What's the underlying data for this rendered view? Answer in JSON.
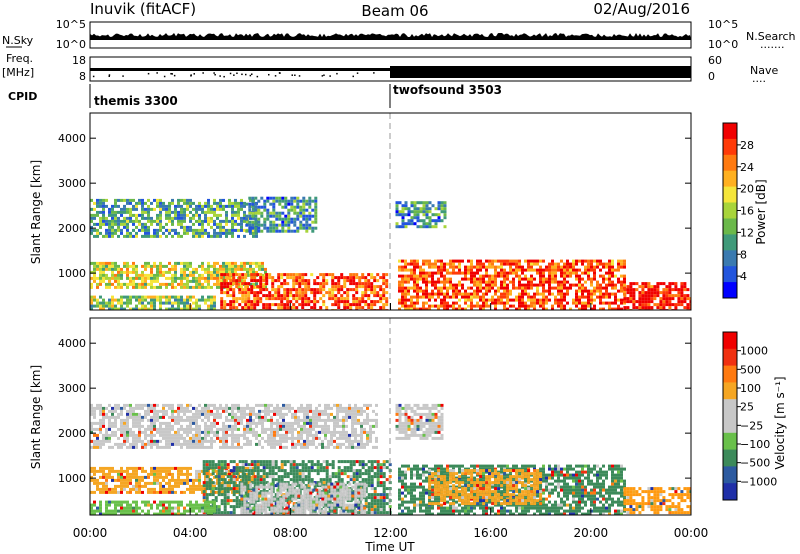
{
  "header": {
    "station": "Inuvik (fitACF)",
    "beam": "Beam 06",
    "date": "02/Aug/2016"
  },
  "nsky_panel": {
    "left_label": "N.Sky",
    "right_label": "N.Search",
    "left_ticks": [
      "10^5",
      "10^0"
    ],
    "right_ticks": [
      "10^5",
      "10^0"
    ],
    "dots": "......."
  },
  "freq_panel": {
    "left_label_line1": "Freq.",
    "left_label_line2": "[MHz]",
    "right_label": "Nave",
    "left_ticks": [
      "18",
      "8"
    ],
    "right_ticks": [
      "60",
      "0"
    ],
    "dots": "...."
  },
  "cpid": {
    "label": "CPID",
    "modes": [
      {
        "name": "themis 3300",
        "start_hour": 0
      },
      {
        "name": "twofsound 3503",
        "start_hour": 12
      }
    ]
  },
  "chart_data": [
    {
      "type": "heatmap",
      "name": "power",
      "ylabel": "Slant Range [km]",
      "xlabel": "",
      "ylim": [
        180,
        4560
      ],
      "xlim": [
        0,
        24
      ],
      "y_ticks": [
        "1000",
        "2000",
        "3000",
        "4000"
      ],
      "colorbar": {
        "label": "Power [dB]",
        "ticks": [
          "4",
          "8",
          "12",
          "16",
          "20",
          "24",
          "28"
        ],
        "colors": [
          "#0000ff",
          "#2255dd",
          "#3a7ab0",
          "#3f9a7a",
          "#6ab84a",
          "#a8d43a",
          "#f5e53a",
          "#ffb020",
          "#ff7a10",
          "#ff3a08",
          "#f00000"
        ]
      },
      "echo_regions": [
        {
          "t0": 0.0,
          "t1": 6.6,
          "r0": 1800,
          "r1": 2650,
          "level": 0.35
        },
        {
          "t0": 6.2,
          "t1": 9.0,
          "r0": 1900,
          "r1": 2700,
          "level": 0.3
        },
        {
          "t0": 12.2,
          "t1": 14.2,
          "r0": 2000,
          "r1": 2600,
          "level": 0.3
        },
        {
          "t0": 0.0,
          "t1": 7.0,
          "r0": 700,
          "r1": 1250,
          "level": 0.55
        },
        {
          "t0": 5.2,
          "t1": 11.8,
          "r0": 180,
          "r1": 1000,
          "level": 0.85
        },
        {
          "t0": 12.3,
          "t1": 21.3,
          "r0": 180,
          "r1": 1300,
          "level": 0.85
        },
        {
          "t0": 21.3,
          "t1": 24.0,
          "r0": 180,
          "r1": 800,
          "level": 0.95
        },
        {
          "t0": 0.0,
          "t1": 5.0,
          "r0": 180,
          "r1": 500,
          "level": 0.45
        }
      ]
    },
    {
      "type": "heatmap",
      "name": "velocity",
      "ylabel": "Slant Range [km]",
      "xlabel": "Time UT",
      "ylim": [
        180,
        4560
      ],
      "xlim": [
        0,
        24
      ],
      "y_ticks": [
        "1000",
        "2000",
        "3000",
        "4000"
      ],
      "x_ticks": [
        "00:00",
        "04:00",
        "08:00",
        "12:00",
        "16:00",
        "20:00",
        "00:00"
      ],
      "colorbar": {
        "label": "Velocity [m s⁻¹]",
        "ticks": [
          "1000",
          "500",
          "100",
          "25",
          "−25",
          "−100",
          "−500",
          "−1000"
        ],
        "colors": [
          "#1f2fa8",
          "#2c5aa0",
          "#3c8a5a",
          "#69c04a",
          "#c8c8c8",
          "#c8c8c8",
          "#f5a623",
          "#ff7a10",
          "#f03010",
          "#f00000"
        ]
      },
      "echo_regions": [
        {
          "t0": 0.0,
          "t1": 11.5,
          "r0": 1700,
          "r1": 2650,
          "color": "#c8c8c8"
        },
        {
          "t0": 12.2,
          "t1": 14.0,
          "r0": 1900,
          "r1": 2650,
          "color": "#c8c8c8"
        },
        {
          "t0": 0.0,
          "t1": 6.5,
          "r0": 650,
          "r1": 1250,
          "color": "#f5a623"
        },
        {
          "t0": 4.5,
          "t1": 12.0,
          "r0": 200,
          "r1": 1400,
          "color": "#3c8a5a"
        },
        {
          "t0": 6.0,
          "t1": 11.0,
          "r0": 200,
          "r1": 900,
          "color": "#c8c8c8"
        },
        {
          "t0": 12.3,
          "t1": 21.3,
          "r0": 200,
          "r1": 1300,
          "color": "#3c8a5a"
        },
        {
          "t0": 13.5,
          "t1": 18.0,
          "r0": 400,
          "r1": 1200,
          "color": "#f5a623"
        },
        {
          "t0": 21.3,
          "t1": 24.0,
          "r0": 200,
          "r1": 800,
          "color": "#ff9a10"
        },
        {
          "t0": 0.0,
          "t1": 5.0,
          "r0": 200,
          "r1": 500,
          "color": "#69c04a"
        }
      ]
    }
  ]
}
